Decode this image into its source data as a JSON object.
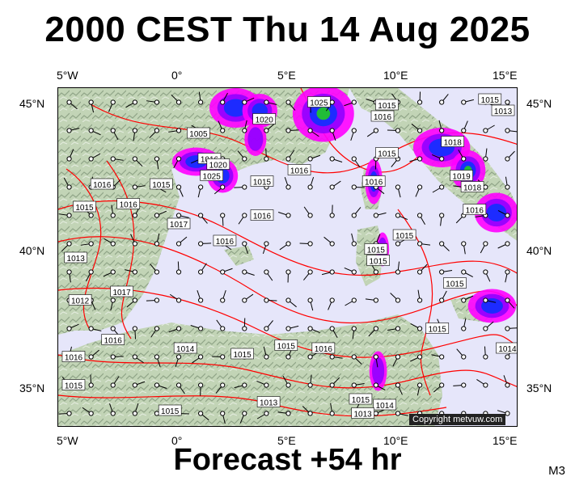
{
  "title": "2000 CEST Thu 14 Aug 2025",
  "subtitle": "Forecast +54 hr",
  "model_code": "M3",
  "copyright": "Copyright metvuw.com",
  "axes": {
    "top_lon_labels": [
      "5°W",
      "0°",
      "5°E",
      "10°E",
      "15°E"
    ],
    "bottom_lon_labels": [
      "5°W",
      "0°",
      "5°E",
      "10°E",
      "15°E"
    ],
    "left_lat_labels": [
      "45°N",
      "40°N",
      "35°N"
    ],
    "right_lat_labels": [
      "45°N",
      "40°N",
      "35°N"
    ]
  },
  "isobar_labels": [
    {
      "text": "1015",
      "lon": 9.5,
      "lat": 44.9
    },
    {
      "text": "1016",
      "lon": 9.3,
      "lat": 44.5
    },
    {
      "text": "1015",
      "lon": 14.2,
      "lat": 45.1
    },
    {
      "text": "1013",
      "lon": 14.8,
      "lat": 44.7
    },
    {
      "text": "1020",
      "lon": 3.9,
      "lat": 44.4
    },
    {
      "text": "1025",
      "lon": 6.4,
      "lat": 45.0
    },
    {
      "text": "1005",
      "lon": 0.9,
      "lat": 43.9
    },
    {
      "text": "1016",
      "lon": 1.4,
      "lat": 43.0
    },
    {
      "text": "1020",
      "lon": 1.8,
      "lat": 42.8
    },
    {
      "text": "1025",
      "lon": 1.5,
      "lat": 42.4
    },
    {
      "text": "1015",
      "lon": -0.8,
      "lat": 42.1
    },
    {
      "text": "1015",
      "lon": 3.8,
      "lat": 42.2
    },
    {
      "text": "1016",
      "lon": 5.5,
      "lat": 42.6
    },
    {
      "text": "1015",
      "lon": 9.5,
      "lat": 43.2
    },
    {
      "text": "1016",
      "lon": 8.9,
      "lat": 42.2
    },
    {
      "text": "1018",
      "lon": 12.5,
      "lat": 43.6
    },
    {
      "text": "1019",
      "lon": 12.9,
      "lat": 42.4
    },
    {
      "text": "1018",
      "lon": 13.4,
      "lat": 42.0
    },
    {
      "text": "1016",
      "lon": 13.5,
      "lat": 41.2
    },
    {
      "text": "1016",
      "lon": -3.5,
      "lat": 42.1
    },
    {
      "text": "1016",
      "lon": -2.3,
      "lat": 41.4
    },
    {
      "text": "1015",
      "lon": -4.3,
      "lat": 41.3
    },
    {
      "text": "1016",
      "lon": 3.8,
      "lat": 41.0
    },
    {
      "text": "1017",
      "lon": 0.0,
      "lat": 40.7
    },
    {
      "text": "1016",
      "lon": 2.1,
      "lat": 40.1
    },
    {
      "text": "1015",
      "lon": 10.3,
      "lat": 40.3
    },
    {
      "text": "1015",
      "lon": 9.0,
      "lat": 39.8
    },
    {
      "text": "1015",
      "lon": 9.1,
      "lat": 39.4
    },
    {
      "text": "1013",
      "lon": -4.7,
      "lat": 39.5
    },
    {
      "text": "1017",
      "lon": -2.6,
      "lat": 38.3
    },
    {
      "text": "1012",
      "lon": -4.5,
      "lat": 38.0
    },
    {
      "text": "1016",
      "lon": -3.0,
      "lat": 36.6
    },
    {
      "text": "1015",
      "lon": 12.6,
      "lat": 38.6
    },
    {
      "text": "1015",
      "lon": 11.8,
      "lat": 37.0
    },
    {
      "text": "1014",
      "lon": 0.3,
      "lat": 36.3
    },
    {
      "text": "1015",
      "lon": 2.9,
      "lat": 36.1
    },
    {
      "text": "1015",
      "lon": 4.9,
      "lat": 36.4
    },
    {
      "text": "1016",
      "lon": 6.6,
      "lat": 36.3
    },
    {
      "text": "1014",
      "lon": 15.0,
      "lat": 36.3
    },
    {
      "text": "1016",
      "lon": -4.8,
      "lat": 36.0
    },
    {
      "text": "1015",
      "lon": -4.8,
      "lat": 35.0
    },
    {
      "text": "1013",
      "lon": 4.1,
      "lat": 34.4
    },
    {
      "text": "1015",
      "lon": -0.4,
      "lat": 34.1
    },
    {
      "text": "1015",
      "lon": 8.3,
      "lat": 34.5
    },
    {
      "text": "1014",
      "lon": 9.4,
      "lat": 34.3
    },
    {
      "text": "1013",
      "lon": 8.4,
      "lat": 34.0
    }
  ],
  "map_extent": {
    "lon_min": -5.5,
    "lon_max": 15.5,
    "lat_min": 33.5,
    "lat_max": 45.5
  },
  "colors": {
    "sea": "#e6e6fa",
    "land_light": "#c2d4b6",
    "land_dark": "#8fa487",
    "isobar": "#ff0000",
    "rain_light": "#ff00ff",
    "rain_mid": "#9000ff",
    "rain_heavy": "#1030ff",
    "rain_peak": "#22cc22"
  },
  "precipitation_areas": [
    {
      "lon": 2.6,
      "lat": 44.8,
      "rx": 1.2,
      "ry": 0.7,
      "level": 2
    },
    {
      "lon": 3.7,
      "lat": 44.7,
      "rx": 0.8,
      "ry": 0.6,
      "level": 2
    },
    {
      "lon": 3.5,
      "lat": 43.7,
      "rx": 0.5,
      "ry": 0.6,
      "level": 1
    },
    {
      "lon": 6.6,
      "lat": 44.6,
      "rx": 1.4,
      "ry": 1.0,
      "level": 3
    },
    {
      "lon": 0.8,
      "lat": 42.9,
      "rx": 1.1,
      "ry": 0.5,
      "level": 2
    },
    {
      "lon": 2.0,
      "lat": 42.4,
      "rx": 0.7,
      "ry": 0.6,
      "level": 2
    },
    {
      "lon": 8.9,
      "lat": 42.2,
      "rx": 0.4,
      "ry": 0.8,
      "level": 2
    },
    {
      "lon": 12.0,
      "lat": 43.4,
      "rx": 1.3,
      "ry": 0.7,
      "level": 2
    },
    {
      "lon": 13.2,
      "lat": 42.6,
      "rx": 0.8,
      "ry": 0.7,
      "level": 3
    },
    {
      "lon": 14.5,
      "lat": 41.1,
      "rx": 1.0,
      "ry": 0.7,
      "level": 2
    },
    {
      "lon": 9.3,
      "lat": 39.8,
      "rx": 0.3,
      "ry": 0.6,
      "level": 1
    },
    {
      "lon": 14.3,
      "lat": 37.8,
      "rx": 1.1,
      "ry": 0.6,
      "level": 2
    },
    {
      "lon": 9.1,
      "lat": 35.5,
      "rx": 0.4,
      "ry": 0.7,
      "level": 1
    }
  ],
  "map_features": {
    "coastline": "land/sea outline (shaded relief)",
    "isobars": "red contour lines",
    "wind": "wind barbs on grid",
    "precipitation": "shaded rain areas"
  }
}
